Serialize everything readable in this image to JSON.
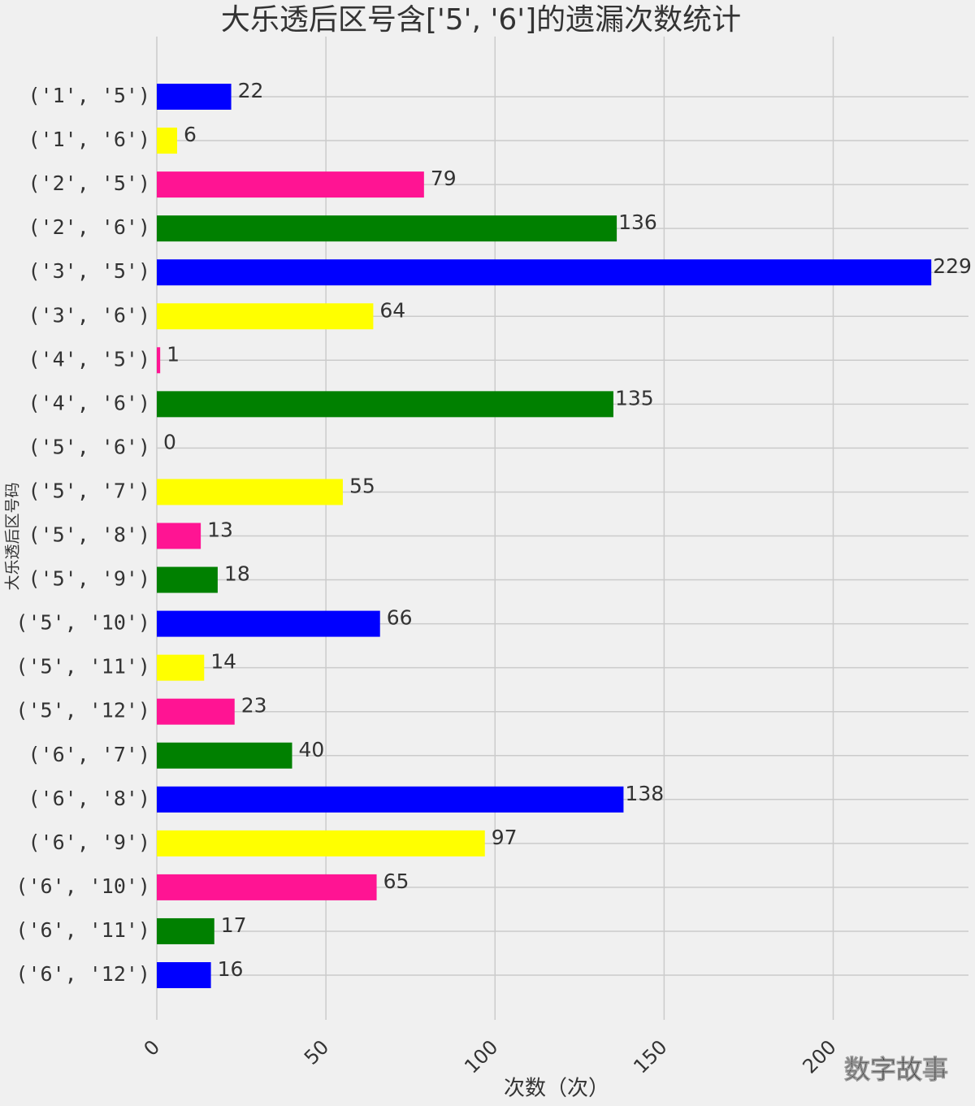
{
  "chart_data": {
    "type": "barh",
    "title": "大乐透后区号含['5', '6']的遗漏次数统计",
    "ylabel": "大乐透后区号码",
    "xlabel": "次数（次）",
    "watermark": "数字故事",
    "categories": [
      "('1', '5')",
      "('1', '6')",
      "('2', '5')",
      "('2', '6')",
      "('3', '5')",
      "('3', '6')",
      "('4', '5')",
      "('4', '6')",
      "('5', '6')",
      "('5', '7')",
      "('5', '8')",
      "('5', '9')",
      "('5', '10')",
      "('5', '11')",
      "('5', '12')",
      "('6', '7')",
      "('6', '8')",
      "('6', '9')",
      "('6', '10')",
      "('6', '11')",
      "('6', '12')"
    ],
    "values": [
      22,
      6,
      79,
      136,
      229,
      64,
      1,
      135,
      0,
      55,
      13,
      18,
      66,
      14,
      23,
      40,
      138,
      97,
      65,
      17,
      16
    ],
    "colors": [
      "#0000ff",
      "#ffff00",
      "#ff1493",
      "#008000"
    ],
    "value_label_color": "#0000ff",
    "xlim": [
      0,
      240
    ],
    "xticks": [
      0,
      50,
      100,
      150,
      200
    ],
    "grid": true
  }
}
